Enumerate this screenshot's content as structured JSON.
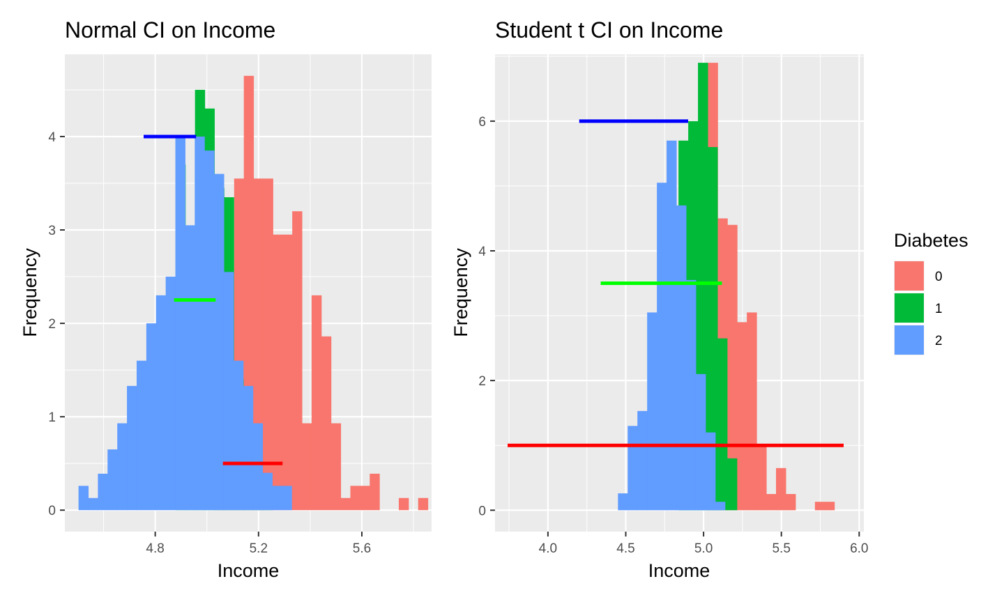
{
  "legend": {
    "title": "Diabetes",
    "entries": [
      {
        "label": "0",
        "color": "#F8766D"
      },
      {
        "label": "1",
        "color": "#00BA38"
      },
      {
        "label": "2",
        "color": "#619CFF"
      }
    ]
  },
  "chart_data": [
    {
      "type": "histogram",
      "title": "Normal CI on Income",
      "xlabel": "Income",
      "ylabel": "Frequency",
      "xlim": [
        4.45,
        5.87
      ],
      "ylim": [
        -0.23,
        4.88
      ],
      "xticks": [
        4.8,
        5.2,
        5.6
      ],
      "yticks": [
        0,
        1,
        2,
        3,
        4
      ],
      "xtick_labels": [
        "4.8",
        "5.2",
        "5.6"
      ],
      "ytick_labels": [
        "0",
        "1",
        "2",
        "3",
        "4"
      ],
      "grid": true,
      "bin_width": 0.0375,
      "series": [
        {
          "name": "0",
          "color": "#F8766D",
          "x0": 4.993,
          "values": [
            0,
            2.55,
            2.55,
            3.55,
            4.65,
            3.55,
            3.55,
            2.95,
            2.95,
            3.2,
            0.93,
            2.3,
            1.86,
            0.93,
            0.13,
            0.26,
            0.26,
            0.39,
            0,
            0,
            0.13,
            0,
            0.13
          ]
        },
        {
          "name": "1",
          "color": "#00BA38",
          "x0": 4.879,
          "values": [
            3.7,
            2.4,
            4.5,
            4.3,
            3.45,
            3.35,
            1.4,
            0.8,
            0.4,
            0.1
          ]
        },
        {
          "name": "2",
          "color": "#619CFF",
          "x0": 4.503,
          "values": [
            0.26,
            0.13,
            0.39,
            0.65,
            0.93,
            1.33,
            1.6,
            2.0,
            2.3,
            2.5,
            4.0,
            3.05,
            4.0,
            3.85,
            3.6,
            2.55,
            1.6,
            1.33,
            0.93,
            0.4,
            0.26,
            0.26
          ]
        }
      ],
      "ci_segments": [
        {
          "color": "#0000FF",
          "x": [
            4.755,
            4.958
          ],
          "y": 4.0
        },
        {
          "color": "#00FF00",
          "x": [
            4.873,
            5.034
          ],
          "y": 2.25
        },
        {
          "color": "#FF0000",
          "x": [
            5.062,
            5.293
          ],
          "y": 0.5
        }
      ]
    },
    {
      "type": "histogram",
      "title": "Student t CI on Income",
      "xlabel": "Income",
      "ylabel": "Frequency",
      "xlim": [
        3.66,
        6.03
      ],
      "ylim": [
        -0.33,
        7.03
      ],
      "xticks": [
        4.0,
        4.5,
        5.0,
        5.5,
        6.0
      ],
      "yticks": [
        0,
        2,
        4,
        6
      ],
      "xtick_labels": [
        "4.0",
        "4.5",
        "5.0",
        "5.5",
        "6.0"
      ],
      "ytick_labels": [
        "0",
        "2",
        "4",
        "6"
      ],
      "grid": true,
      "bin_width": 0.0625,
      "series": [
        {
          "name": "0",
          "color": "#F8766D",
          "x0": 5.028,
          "values": [
            6.9,
            4.5,
            4.4,
            2.9,
            3.05,
            1.0,
            0.25,
            0.65,
            0.25,
            0,
            0,
            0.13,
            0.13
          ]
        },
        {
          "name": "1",
          "color": "#00BA38",
          "x0": 4.839,
          "values": [
            5.7,
            6.0,
            6.9,
            5.6,
            2.65,
            0.8
          ]
        },
        {
          "name": "2",
          "color": "#619CFF",
          "x0": 4.45,
          "values": [
            0.26,
            1.3,
            1.53,
            3.05,
            5.05,
            5.7,
            4.7,
            3.55,
            2.1,
            1.2,
            0.13
          ]
        }
      ],
      "ci_segments": [
        {
          "color": "#0000FF",
          "x": [
            4.201,
            4.901
          ],
          "y": 6.0
        },
        {
          "color": "#00FF00",
          "x": [
            4.339,
            5.118
          ],
          "y": 3.5
        },
        {
          "color": "#FF0000",
          "x": [
            3.741,
            5.9
          ],
          "y": 1.0
        }
      ]
    }
  ]
}
